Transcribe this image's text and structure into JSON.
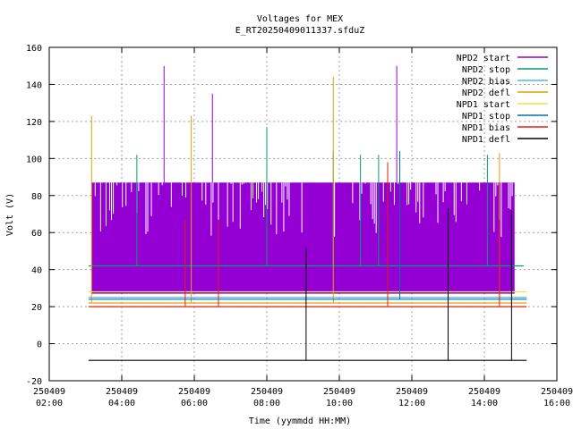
{
  "chart_data": {
    "type": "line",
    "title": "Voltages for MEX",
    "subtitle": "E_RT20250409011337.sfduZ",
    "xlabel": "Time (yymmdd HH:MM)",
    "ylabel": "Volt (V)",
    "xlim": [
      "250409 02:00",
      "250409 16:00"
    ],
    "ylim": [
      -20,
      160
    ],
    "grid": true,
    "legend_placement": "top-right",
    "x_ticks": [
      {
        "date": "250409",
        "time": "02:00",
        "hour": 2
      },
      {
        "date": "250409",
        "time": "04:00",
        "hour": 4
      },
      {
        "date": "250409",
        "time": "06:00",
        "hour": 6
      },
      {
        "date": "250409",
        "time": "08:00",
        "hour": 8
      },
      {
        "date": "250409",
        "time": "10:00",
        "hour": 10
      },
      {
        "date": "250409",
        "time": "12:00",
        "hour": 12
      },
      {
        "date": "250409",
        "time": "14:00",
        "hour": 14
      },
      {
        "date": "250409",
        "time": "16:00",
        "hour": 16
      }
    ],
    "y_ticks": [
      -20,
      0,
      20,
      40,
      60,
      80,
      100,
      120,
      140,
      160
    ],
    "series": [
      {
        "name": "NPD2 start",
        "color": "#9400d3",
        "x": [
          "250409 03:10",
          "250409 05:10",
          "250409 06:30",
          "250409 08:00",
          "250409 10:00",
          "250409 11:35",
          "250409 13:00",
          "250409 14:50"
        ],
        "y": [
          87,
          150,
          135,
          87,
          87,
          150,
          87,
          87
        ],
        "band_low": [
          27,
          27,
          27,
          27,
          27,
          27,
          27,
          27
        ],
        "band_high": [
          87,
          87,
          87,
          87,
          87,
          87,
          87,
          87
        ]
      },
      {
        "name": "NPD2 stop",
        "color": "#009e73",
        "x": [
          "250409 03:05",
          "250409 04:25",
          "250409 08:00",
          "250409 09:50",
          "250409 10:35",
          "250409 11:05",
          "250409 14:05",
          "250409 15:05"
        ],
        "y": [
          42,
          102,
          117,
          104,
          102,
          102,
          102,
          57
        ]
      },
      {
        "name": "NPD2 bias",
        "color": "#56b4e9",
        "x": [
          "250409 03:05",
          "250409 15:10"
        ],
        "y": [
          25,
          25
        ]
      },
      {
        "name": "NPD2 defl",
        "color": "#e69f00",
        "x": [
          "250409 03:05",
          "250409 03:10",
          "250409 05:55",
          "250409 09:50",
          "250409 14:25",
          "250409 15:10"
        ],
        "y": [
          22,
          123,
          123,
          144,
          103,
          22
        ]
      },
      {
        "name": "NPD1 start",
        "color": "#f0e442",
        "x": [
          "250409 03:05",
          "250409 15:10"
        ],
        "y": [
          28,
          28
        ]
      },
      {
        "name": "NPD1 stop",
        "color": "#0072b2",
        "x": [
          "250409 03:05",
          "250409 11:40",
          "250409 15:10"
        ],
        "y": [
          24,
          104,
          24
        ]
      },
      {
        "name": "NPD1 bias",
        "color": "#e51e10",
        "x": [
          "250409 03:05",
          "250409 05:45",
          "250409 06:40",
          "250409 11:20",
          "250409 14:25",
          "250409 15:10"
        ],
        "y": [
          20,
          67,
          67,
          98,
          67,
          20
        ]
      },
      {
        "name": "NPD1 defl",
        "color": "#000000",
        "x": [
          "250409 03:05",
          "250409 09:05",
          "250409 13:00",
          "250409 14:45",
          "250409 15:10"
        ],
        "y": [
          -9,
          52,
          73,
          72,
          -9
        ]
      }
    ]
  }
}
